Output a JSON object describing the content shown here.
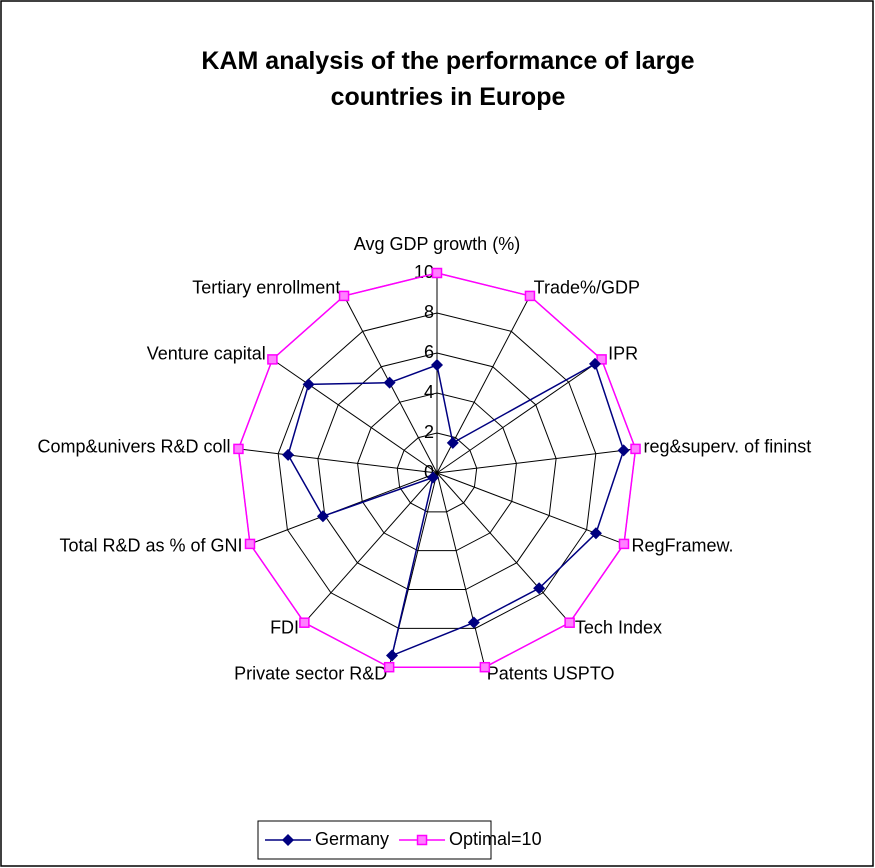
{
  "chart_data": {
    "type": "radar",
    "title": "KAM analysis of the performance of large countries in Europe",
    "categories": [
      "Avg GDP growth (%)",
      "Trade%/GDP",
      "IPR",
      "reg&superv. of fininst",
      "RegFramew.",
      "Tech Index",
      "Patents USPTO",
      "Private sector R&D",
      "FDI",
      "Total R&D as % of GNI",
      "Comp&univers R&D coll",
      "Venture capital",
      "Tertiary enrollment"
    ],
    "series": [
      {
        "name": "Germany",
        "color": "#000080",
        "values": [
          5.4,
          1.7,
          9.6,
          9.4,
          8.5,
          7.7,
          7.7,
          9.4,
          0.3,
          6.1,
          7.5,
          7.8,
          5.1
        ]
      },
      {
        "name": "Optimal=10",
        "color": "#ff00ff",
        "values": [
          10,
          10,
          10,
          10,
          10,
          10,
          10,
          10,
          10,
          10,
          10,
          10,
          10
        ]
      }
    ],
    "ylim": [
      0,
      10
    ],
    "yticks": [
      0,
      2,
      4,
      6,
      8,
      10
    ],
    "grid": true,
    "legend": "bottom"
  }
}
